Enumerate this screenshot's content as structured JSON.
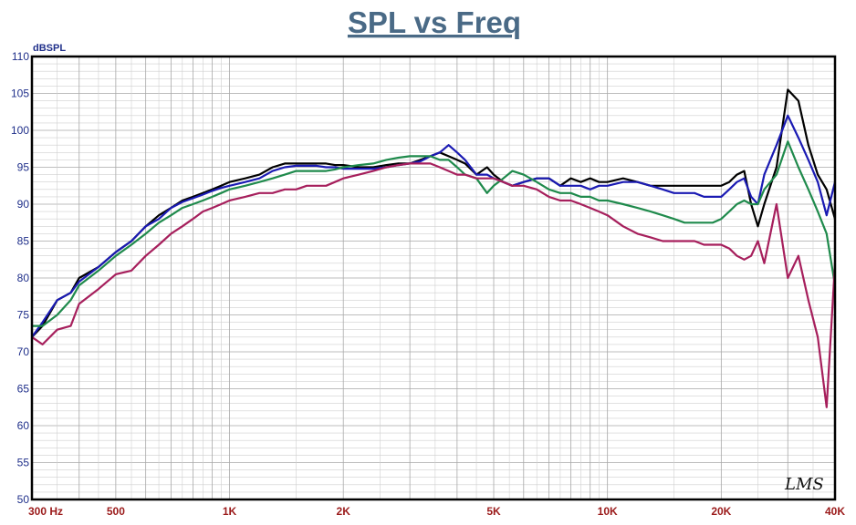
{
  "chart_data": {
    "type": "line",
    "title": "SPL vs Freq",
    "ylabel": "dBSPL",
    "x_scale": "log",
    "xlim": [
      300,
      40000
    ],
    "ylim": [
      50,
      110
    ],
    "yticks": [
      50,
      55,
      60,
      65,
      70,
      75,
      80,
      85,
      90,
      95,
      100,
      105,
      110
    ],
    "xtick_labels": [
      {
        "value": 300,
        "label": "300 Hz"
      },
      {
        "value": 500,
        "label": "500"
      },
      {
        "value": 1000,
        "label": "1K"
      },
      {
        "value": 2000,
        "label": "2K"
      },
      {
        "value": 5000,
        "label": "5K"
      },
      {
        "value": 10000,
        "label": "10K"
      },
      {
        "value": 20000,
        "label": "20K"
      },
      {
        "value": 40000,
        "label": "40K"
      }
    ],
    "grid": true,
    "annotation": "LMS",
    "series": [
      {
        "color": "#000000",
        "x": [
          300,
          320,
          350,
          380,
          400,
          450,
          500,
          550,
          600,
          650,
          700,
          750,
          800,
          850,
          900,
          950,
          1000,
          1100,
          1200,
          1300,
          1400,
          1500,
          1600,
          1700,
          1800,
          1900,
          2000,
          2200,
          2400,
          2600,
          2800,
          3000,
          3200,
          3400,
          3600,
          3800,
          4000,
          4200,
          4500,
          4800,
          5000,
          5300,
          5600,
          6000,
          6500,
          7000,
          7500,
          8000,
          8500,
          9000,
          9500,
          10000,
          11000,
          12000,
          13000,
          14000,
          15000,
          16000,
          17000,
          18000,
          19000,
          20000,
          21000,
          22000,
          23000,
          24000,
          25000,
          26000,
          28000,
          30000,
          32000,
          34000,
          36000,
          38000,
          40000
        ],
        "y": [
          72,
          73.5,
          77,
          78,
          80,
          81.5,
          83.5,
          85,
          87,
          88.5,
          89.5,
          90.5,
          91,
          91.5,
          92,
          92.5,
          93,
          93.5,
          94,
          95,
          95.5,
          95.5,
          95.5,
          95.5,
          95.5,
          95.3,
          95.3,
          95,
          95,
          95.3,
          95.5,
          95.5,
          96,
          96.5,
          97,
          96.5,
          96,
          95.5,
          94,
          95,
          94,
          93,
          92.5,
          93,
          93.5,
          93.5,
          92.5,
          93.5,
          93,
          93.5,
          93,
          93,
          93.5,
          93,
          92.5,
          92.5,
          92.5,
          92.5,
          92.5,
          92.5,
          92.5,
          92.5,
          93,
          94,
          94.5,
          90,
          87,
          90,
          95,
          105.5,
          104,
          98,
          94,
          92,
          88
        ]
      },
      {
        "color": "#1a1ab3",
        "x": [
          300,
          320,
          350,
          380,
          400,
          450,
          500,
          550,
          600,
          650,
          700,
          750,
          800,
          850,
          900,
          950,
          1000,
          1100,
          1200,
          1300,
          1400,
          1500,
          1600,
          1700,
          1800,
          1900,
          2000,
          2200,
          2400,
          2600,
          2800,
          3000,
          3200,
          3400,
          3600,
          3800,
          4000,
          4200,
          4500,
          4800,
          5000,
          5300,
          5600,
          6000,
          6500,
          7000,
          7500,
          8000,
          8500,
          9000,
          9500,
          10000,
          11000,
          12000,
          13000,
          14000,
          15000,
          16000,
          17000,
          18000,
          19000,
          20000,
          21000,
          22000,
          23000,
          24000,
          25000,
          26000,
          28000,
          30000,
          32000,
          34000,
          36000,
          38000,
          40000
        ],
        "y": [
          72,
          74,
          77,
          78,
          79.5,
          81.5,
          83.5,
          85,
          87,
          88,
          89.5,
          90.3,
          90.8,
          91.3,
          91.8,
          92.2,
          92.5,
          93,
          93.5,
          94.5,
          95,
          95.2,
          95.2,
          95.2,
          95,
          95,
          94.8,
          94.8,
          94.8,
          95,
          95.3,
          95.5,
          95.8,
          96.5,
          97,
          98,
          97,
          96,
          94,
          94,
          93.5,
          93,
          92.5,
          93,
          93.5,
          93.5,
          92.5,
          92.5,
          92.5,
          92,
          92.5,
          92.5,
          93,
          93,
          92.5,
          92,
          91.5,
          91.5,
          91.5,
          91,
          91,
          91,
          92,
          93,
          93.5,
          91,
          90,
          94,
          98,
          102,
          99,
          96,
          93,
          88.5,
          93
        ]
      },
      {
        "color": "#1f8a4c",
        "x": [
          300,
          320,
          350,
          380,
          400,
          450,
          500,
          550,
          600,
          650,
          700,
          750,
          800,
          850,
          900,
          950,
          1000,
          1100,
          1200,
          1300,
          1400,
          1500,
          1600,
          1700,
          1800,
          1900,
          2000,
          2200,
          2400,
          2600,
          2800,
          3000,
          3200,
          3400,
          3600,
          3800,
          4000,
          4200,
          4500,
          4800,
          5000,
          5300,
          5600,
          6000,
          6500,
          7000,
          7500,
          8000,
          8500,
          9000,
          9500,
          10000,
          11000,
          12000,
          13000,
          14000,
          15000,
          16000,
          17000,
          18000,
          19000,
          20000,
          21000,
          22000,
          23000,
          24000,
          25000,
          26000,
          28000,
          30000,
          32000,
          34000,
          36000,
          38000,
          40000
        ],
        "y": [
          73.5,
          73.5,
          75,
          77,
          79,
          81,
          83,
          84.5,
          86,
          87.5,
          88.5,
          89.5,
          90,
          90.5,
          91,
          91.5,
          92,
          92.5,
          93,
          93.5,
          94,
          94.5,
          94.5,
          94.5,
          94.5,
          94.7,
          95,
          95.3,
          95.5,
          96,
          96.3,
          96.5,
          96.5,
          96.5,
          96,
          96,
          95,
          94,
          93.5,
          91.5,
          92.5,
          93.5,
          94.5,
          94,
          93,
          92,
          91.5,
          91.5,
          91,
          91,
          90.5,
          90.5,
          90,
          89.5,
          89,
          88.5,
          88,
          87.5,
          87.5,
          87.5,
          87.5,
          88,
          89,
          90,
          90.5,
          90,
          90,
          92,
          94,
          98.5,
          95,
          92,
          89,
          86,
          79
        ]
      },
      {
        "color": "#a61f5c",
        "x": [
          300,
          320,
          350,
          380,
          400,
          450,
          500,
          550,
          600,
          650,
          700,
          750,
          800,
          850,
          900,
          950,
          1000,
          1100,
          1200,
          1300,
          1400,
          1500,
          1600,
          1700,
          1800,
          1900,
          2000,
          2200,
          2400,
          2600,
          2800,
          3000,
          3200,
          3400,
          3600,
          3800,
          4000,
          4200,
          4500,
          4800,
          5000,
          5300,
          5600,
          6000,
          6500,
          7000,
          7500,
          8000,
          8500,
          9000,
          9500,
          10000,
          11000,
          12000,
          13000,
          14000,
          15000,
          16000,
          17000,
          18000,
          19000,
          20000,
          21000,
          22000,
          23000,
          24000,
          25000,
          26000,
          28000,
          30000,
          32000,
          34000,
          36000,
          38000,
          40000
        ],
        "y": [
          72,
          71,
          73,
          73.5,
          76.5,
          78.5,
          80.5,
          81,
          83,
          84.5,
          86,
          87,
          88,
          89,
          89.5,
          90,
          90.5,
          91,
          91.5,
          91.5,
          92,
          92,
          92.5,
          92.5,
          92.5,
          93,
          93.5,
          94,
          94.5,
          95,
          95.3,
          95.5,
          95.5,
          95.5,
          95,
          94.5,
          94,
          94,
          93.5,
          93.5,
          93.5,
          93,
          92.5,
          92.5,
          92,
          91,
          90.5,
          90.5,
          90,
          89.5,
          89,
          88.5,
          87,
          86,
          85.5,
          85,
          85,
          85,
          85,
          84.5,
          84.5,
          84.5,
          84,
          83,
          82.5,
          83,
          85,
          82,
          90,
          80,
          83,
          77,
          72,
          62.5,
          82
        ]
      }
    ]
  }
}
